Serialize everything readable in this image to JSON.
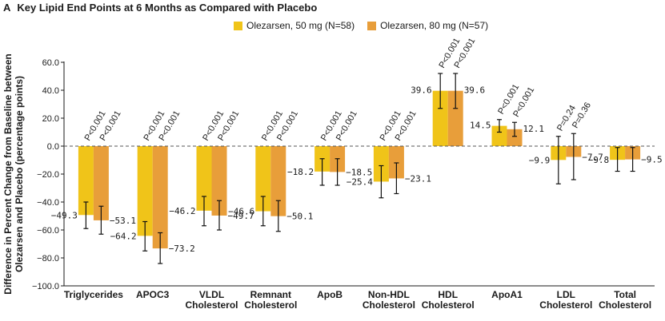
{
  "panel": {
    "letter": "A",
    "title": "Key Lipid End Points at 6 Months as Compared with Placebo"
  },
  "colors": {
    "series_50": "#f0c419",
    "series_80": "#e89e3a",
    "axis": "#1a1a1a",
    "zero_line": "#555555"
  },
  "chart_data": {
    "type": "bar",
    "title": "Key Lipid End Points at 6 Months as Compared with Placebo",
    "ylabel": "Difference in Percent Change from Baseline between Olezarsen and Placebo (percentage points)",
    "xlabel": "",
    "ylim": [
      -100,
      60
    ],
    "yticks": [
      "60.0",
      "40.0",
      "20.0",
      "0.0",
      "−20.0",
      "−40.0",
      "−60.0",
      "−80.0",
      "−100.0"
    ],
    "ytick_values": [
      60,
      40,
      20,
      0,
      -20,
      -40,
      -60,
      -80,
      -100
    ],
    "grid": false,
    "legend_position": "top",
    "categories": [
      [
        "Triglycerides"
      ],
      [
        "APOC3"
      ],
      [
        "VLDL",
        "Cholesterol"
      ],
      [
        "Remnant",
        "Cholesterol"
      ],
      [
        "ApoB"
      ],
      [
        "Non-HDL",
        "Cholesterol"
      ],
      [
        "HDL",
        "Cholesterol"
      ],
      [
        "ApoA1"
      ],
      [
        "LDL",
        "Cholesterol"
      ],
      [
        "Total",
        "Cholesterol"
      ]
    ],
    "series": [
      {
        "name": "Olezarsen, 50 mg (N=58)",
        "values": [
          -49.3,
          -64.2,
          -46.2,
          -46.6,
          -18.2,
          -25.4,
          39.6,
          14.5,
          -9.9,
          -9.8
        ],
        "labels": [
          "−49.3",
          "−64.2",
          "−46.2",
          "−46.6",
          "−18.2",
          "−25.4",
          "39.6",
          "14.5",
          "−9.9",
          "−9.8"
        ],
        "ci_low": [
          -59,
          -75,
          -57,
          -57,
          -28,
          -37,
          27,
          10,
          -27,
          -18
        ],
        "ci_high": [
          -40,
          -54,
          -36,
          -36,
          -9,
          -14,
          52,
          19,
          7,
          -1
        ],
        "p_values": [
          "P<0.001",
          "P<0.001",
          "P<0.001",
          "P<0.001",
          "P<0.001",
          "P<0.001",
          "P<0.001",
          "P<0.001",
          "P=0.24",
          ""
        ]
      },
      {
        "name": "Olezarsen, 80 mg (N=57)",
        "values": [
          -53.1,
          -73.2,
          -49.7,
          -50.1,
          -18.5,
          -23.1,
          39.6,
          12.1,
          -7.7,
          -9.5
        ],
        "labels": [
          "−53.1",
          "−73.2",
          "−49.7",
          "−50.1",
          "−18.5",
          "−23.1",
          "39.6",
          "12.1",
          "−7.7",
          "−9.5"
        ],
        "ci_low": [
          -63,
          -84,
          -60,
          -61,
          -28,
          -34,
          27,
          7,
          -24,
          -18
        ],
        "ci_high": [
          -43,
          -62,
          -39,
          -39,
          -9,
          -12,
          52,
          17,
          9,
          -1
        ],
        "p_values": [
          "P<0.001",
          "P<0.001",
          "P<0.001",
          "P<0.001",
          "P<0.001",
          "P<0.001",
          "P<0.001",
          "P<0.001",
          "P=0.36",
          ""
        ]
      }
    ]
  }
}
